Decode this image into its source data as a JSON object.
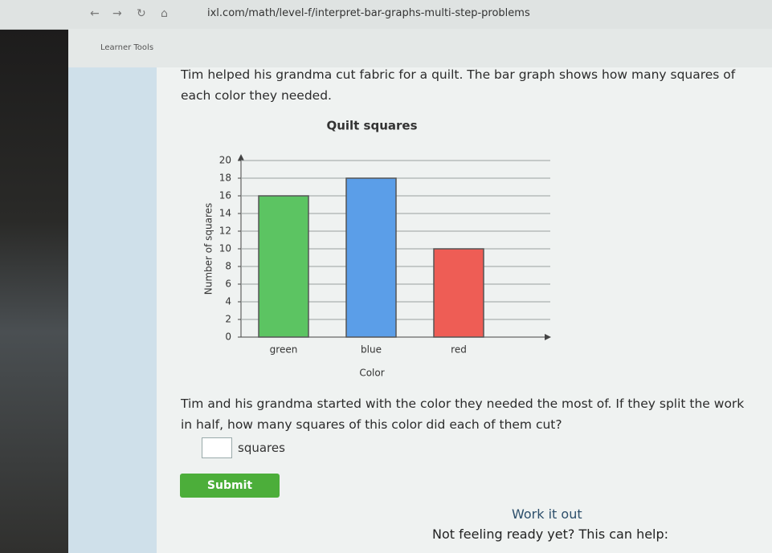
{
  "browser": {
    "url": "ixl.com/math/level-f/interpret-bar-graphs-multi-step-problems"
  },
  "toolbar": {
    "label": "Learner Tools"
  },
  "question": {
    "intro": "Tim helped his grandma cut fabric for a quilt. The bar graph shows how many squares of each color they needed.",
    "prompt": "Tim and his grandma started with the color they needed the most of. If they split the work in half, how many squares of this color did each of them cut?",
    "unit": "squares",
    "submit": "Submit"
  },
  "help": {
    "title": "Work it out",
    "text": "Not feeling ready yet? This can help:"
  },
  "chart_data": {
    "type": "bar",
    "title": "Quilt squares",
    "x_label": "Color",
    "y_label": "Number of squares",
    "categories": [
      "green",
      "blue",
      "red"
    ],
    "values": [
      16,
      18,
      10
    ],
    "colors": [
      "#5cc462",
      "#5b9ee8",
      "#ee5d55"
    ],
    "ylim": [
      0,
      20
    ],
    "yticks": [
      0,
      2,
      4,
      6,
      8,
      10,
      12,
      14,
      16,
      18,
      20
    ],
    "grid": true
  }
}
